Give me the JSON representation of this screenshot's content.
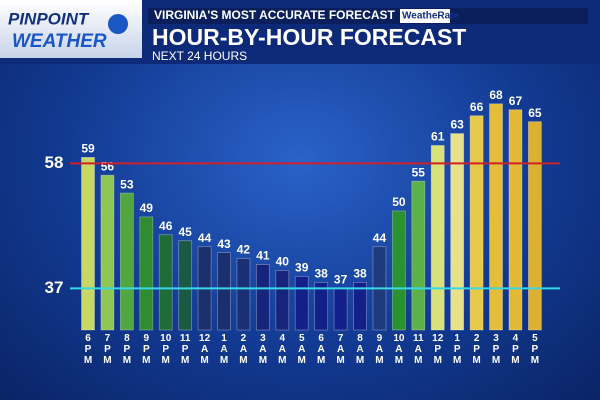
{
  "header": {
    "logo_top": "PINPOINT",
    "logo_bottom": "WEATHER",
    "tagline": "VIRGINIA'S MOST ACCURATE FORECAST",
    "badge": "WeatheRate"
  },
  "chart_data": {
    "type": "bar",
    "title": "HOUR-BY-HOUR FORECAST",
    "subtitle": "NEXT 24 HOURS",
    "categories": [
      "6 PM",
      "7 PM",
      "8 PM",
      "9 PM",
      "10 PM",
      "11 PM",
      "12 AM",
      "1 AM",
      "2 AM",
      "3 AM",
      "4 AM",
      "5 AM",
      "6 AM",
      "7 AM",
      "8 AM",
      "9 AM",
      "10 AM",
      "11 AM",
      "12 PM",
      "1 PM",
      "2 PM",
      "3 PM",
      "4 PM",
      "5 PM"
    ],
    "values": [
      59,
      56,
      53,
      49,
      46,
      45,
      44,
      43,
      42,
      41,
      40,
      39,
      38,
      37,
      38,
      44,
      50,
      55,
      61,
      63,
      66,
      68,
      67,
      65
    ],
    "colors": [
      "#c9d865",
      "#8fc653",
      "#52a640",
      "#2f8c30",
      "#1f6c36",
      "#1b5a42",
      "#1b2f6e",
      "#1b2f6e",
      "#1b2f74",
      "#16247e",
      "#16247e",
      "#14208a",
      "#14208a",
      "#14208a",
      "#14208a",
      "#1d3a7c",
      "#2a9232",
      "#5cb14a",
      "#d9e27a",
      "#e7e28a",
      "#e6c84a",
      "#e4bd3a",
      "#e2b834",
      "#dcb030"
    ],
    "ylim": [
      30,
      72
    ],
    "reference_lines": [
      {
        "value": 58,
        "color": "#d0202a"
      },
      {
        "value": 37,
        "color": "#38d8e8"
      }
    ]
  }
}
